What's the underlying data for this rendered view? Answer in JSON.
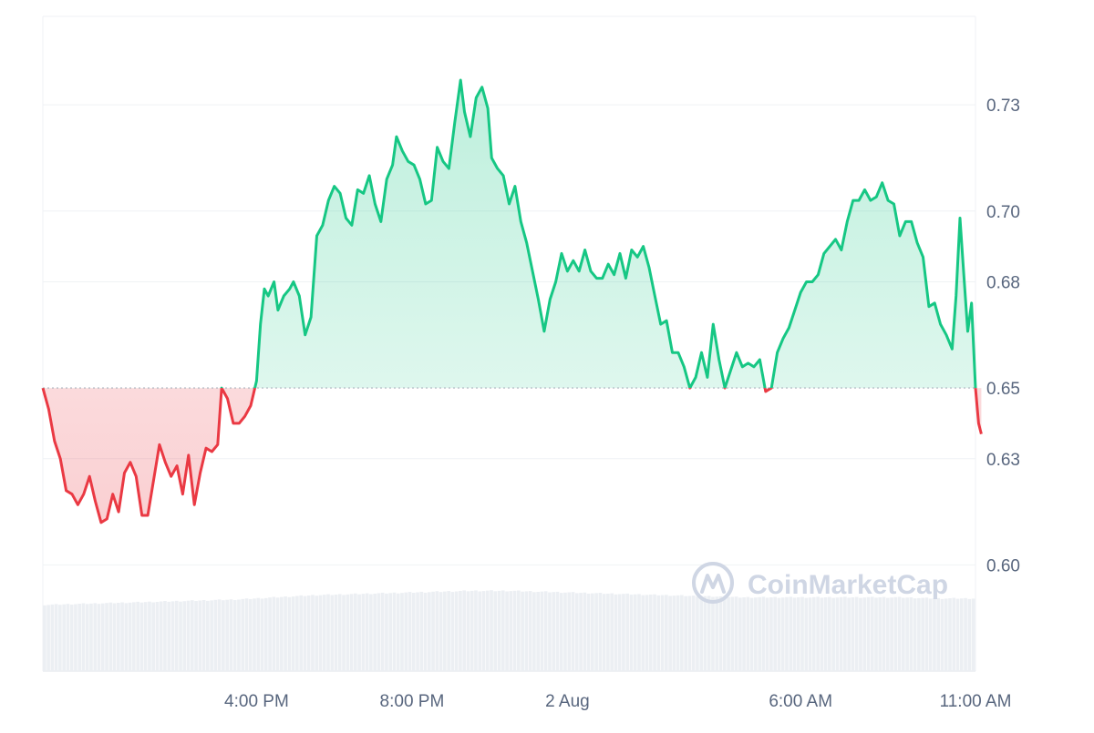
{
  "chart_data": {
    "type": "area",
    "title": "",
    "xlabel": "",
    "ylabel": "",
    "baseline": 0.65,
    "ylim": [
      0.57,
      0.755
    ],
    "yticks": [
      0.6,
      0.63,
      0.65,
      0.68,
      0.7,
      0.73
    ],
    "ytick_labels": [
      "0.60",
      "0.63",
      "0.65",
      "0.68",
      "0.70",
      "0.73"
    ],
    "x_range_hours": [
      0,
      24
    ],
    "xticks": [
      {
        "label": "4:00 PM",
        "hour": 5.5
      },
      {
        "label": "8:00 PM",
        "hour": 9.5
      },
      {
        "label": "2 Aug",
        "hour": 13.5
      },
      {
        "label": "6:00 AM",
        "hour": 19.5
      },
      {
        "label": "11:00 AM",
        "hour": 24
      }
    ],
    "grid": true,
    "watermark": "CoinMarketCap",
    "colors": {
      "up": "#16c784",
      "down": "#ea3943",
      "up_fill": "#16c784",
      "down_fill": "#ea3943",
      "grid": "#eff2f5",
      "tick_text": "#58667e",
      "volume": "#eceff3",
      "watermark": "#cfd6e4"
    },
    "price_series": [
      [
        0.0,
        0.65
      ],
      [
        0.15,
        0.644
      ],
      [
        0.3,
        0.635
      ],
      [
        0.45,
        0.63
      ],
      [
        0.6,
        0.621
      ],
      [
        0.75,
        0.62
      ],
      [
        0.9,
        0.617
      ],
      [
        1.05,
        0.62
      ],
      [
        1.2,
        0.625
      ],
      [
        1.35,
        0.618
      ],
      [
        1.5,
        0.612
      ],
      [
        1.65,
        0.613
      ],
      [
        1.8,
        0.62
      ],
      [
        1.95,
        0.615
      ],
      [
        2.1,
        0.626
      ],
      [
        2.25,
        0.629
      ],
      [
        2.4,
        0.625
      ],
      [
        2.55,
        0.614
      ],
      [
        2.7,
        0.614
      ],
      [
        2.85,
        0.624
      ],
      [
        3.0,
        0.634
      ],
      [
        3.15,
        0.629
      ],
      [
        3.3,
        0.625
      ],
      [
        3.45,
        0.628
      ],
      [
        3.6,
        0.62
      ],
      [
        3.75,
        0.631
      ],
      [
        3.9,
        0.617
      ],
      [
        4.05,
        0.626
      ],
      [
        4.2,
        0.633
      ],
      [
        4.35,
        0.632
      ],
      [
        4.5,
        0.634
      ],
      [
        4.6,
        0.65
      ],
      [
        4.75,
        0.647
      ],
      [
        4.9,
        0.64
      ],
      [
        5.05,
        0.64
      ],
      [
        5.2,
        0.642
      ],
      [
        5.35,
        0.645
      ],
      [
        5.5,
        0.652
      ],
      [
        5.6,
        0.668
      ],
      [
        5.7,
        0.678
      ],
      [
        5.8,
        0.676
      ],
      [
        5.95,
        0.68
      ],
      [
        6.05,
        0.672
      ],
      [
        6.2,
        0.676
      ],
      [
        6.35,
        0.678
      ],
      [
        6.45,
        0.68
      ],
      [
        6.6,
        0.676
      ],
      [
        6.75,
        0.665
      ],
      [
        6.9,
        0.67
      ],
      [
        7.05,
        0.693
      ],
      [
        7.2,
        0.696
      ],
      [
        7.35,
        0.703
      ],
      [
        7.5,
        0.707
      ],
      [
        7.65,
        0.705
      ],
      [
        7.8,
        0.698
      ],
      [
        7.95,
        0.696
      ],
      [
        8.1,
        0.706
      ],
      [
        8.25,
        0.705
      ],
      [
        8.4,
        0.71
      ],
      [
        8.55,
        0.702
      ],
      [
        8.7,
        0.697
      ],
      [
        8.85,
        0.709
      ],
      [
        9.0,
        0.713
      ],
      [
        9.1,
        0.721
      ],
      [
        9.25,
        0.717
      ],
      [
        9.4,
        0.714
      ],
      [
        9.55,
        0.713
      ],
      [
        9.7,
        0.709
      ],
      [
        9.85,
        0.702
      ],
      [
        10.0,
        0.703
      ],
      [
        10.15,
        0.718
      ],
      [
        10.3,
        0.714
      ],
      [
        10.45,
        0.712
      ],
      [
        10.6,
        0.725
      ],
      [
        10.75,
        0.737
      ],
      [
        10.85,
        0.728
      ],
      [
        11.0,
        0.721
      ],
      [
        11.15,
        0.732
      ],
      [
        11.3,
        0.735
      ],
      [
        11.45,
        0.729
      ],
      [
        11.55,
        0.715
      ],
      [
        11.7,
        0.712
      ],
      [
        11.85,
        0.71
      ],
      [
        12.0,
        0.702
      ],
      [
        12.15,
        0.707
      ],
      [
        12.3,
        0.697
      ],
      [
        12.45,
        0.691
      ],
      [
        12.6,
        0.683
      ],
      [
        12.75,
        0.675
      ],
      [
        12.9,
        0.666
      ],
      [
        13.05,
        0.675
      ],
      [
        13.2,
        0.68
      ],
      [
        13.35,
        0.688
      ],
      [
        13.5,
        0.683
      ],
      [
        13.65,
        0.686
      ],
      [
        13.8,
        0.683
      ],
      [
        13.95,
        0.689
      ],
      [
        14.1,
        0.683
      ],
      [
        14.25,
        0.681
      ],
      [
        14.4,
        0.681
      ],
      [
        14.55,
        0.685
      ],
      [
        14.7,
        0.682
      ],
      [
        14.85,
        0.688
      ],
      [
        15.0,
        0.681
      ],
      [
        15.15,
        0.689
      ],
      [
        15.3,
        0.687
      ],
      [
        15.45,
        0.69
      ],
      [
        15.6,
        0.684
      ],
      [
        15.75,
        0.676
      ],
      [
        15.9,
        0.668
      ],
      [
        16.05,
        0.669
      ],
      [
        16.2,
        0.66
      ],
      [
        16.35,
        0.66
      ],
      [
        16.5,
        0.656
      ],
      [
        16.65,
        0.65
      ],
      [
        16.8,
        0.653
      ],
      [
        16.95,
        0.66
      ],
      [
        17.1,
        0.653
      ],
      [
        17.25,
        0.668
      ],
      [
        17.4,
        0.658
      ],
      [
        17.55,
        0.65
      ],
      [
        17.7,
        0.655
      ],
      [
        17.85,
        0.66
      ],
      [
        18.0,
        0.656
      ],
      [
        18.15,
        0.657
      ],
      [
        18.3,
        0.656
      ],
      [
        18.45,
        0.658
      ],
      [
        18.6,
        0.649
      ],
      [
        18.75,
        0.65
      ],
      [
        18.9,
        0.66
      ],
      [
        19.05,
        0.664
      ],
      [
        19.2,
        0.667
      ],
      [
        19.35,
        0.672
      ],
      [
        19.5,
        0.677
      ],
      [
        19.65,
        0.68
      ],
      [
        19.8,
        0.68
      ],
      [
        19.95,
        0.682
      ],
      [
        20.1,
        0.688
      ],
      [
        20.25,
        0.69
      ],
      [
        20.4,
        0.692
      ],
      [
        20.55,
        0.689
      ],
      [
        20.7,
        0.697
      ],
      [
        20.85,
        0.703
      ],
      [
        21.0,
        0.703
      ],
      [
        21.15,
        0.706
      ],
      [
        21.3,
        0.703
      ],
      [
        21.45,
        0.704
      ],
      [
        21.6,
        0.708
      ],
      [
        21.75,
        0.703
      ],
      [
        21.9,
        0.702
      ],
      [
        22.05,
        0.693
      ],
      [
        22.2,
        0.697
      ],
      [
        22.35,
        0.697
      ],
      [
        22.5,
        0.691
      ],
      [
        22.65,
        0.687
      ],
      [
        22.8,
        0.673
      ],
      [
        22.95,
        0.674
      ],
      [
        23.1,
        0.668
      ],
      [
        23.25,
        0.665
      ],
      [
        23.4,
        0.661
      ],
      [
        23.5,
        0.676
      ],
      [
        23.6,
        0.698
      ],
      [
        23.7,
        0.682
      ],
      [
        23.8,
        0.666
      ],
      [
        23.9,
        0.674
      ],
      [
        24.0,
        0.65
      ],
      [
        24.08,
        0.64
      ],
      [
        24.15,
        0.637
      ]
    ],
    "volume_levels": [
      [
        0,
        0.61
      ],
      [
        1,
        0.62
      ],
      [
        2,
        0.63
      ],
      [
        3,
        0.64
      ],
      [
        4,
        0.65
      ],
      [
        5,
        0.66
      ],
      [
        6,
        0.68
      ],
      [
        7,
        0.7
      ],
      [
        8,
        0.71
      ],
      [
        9,
        0.72
      ],
      [
        10,
        0.73
      ],
      [
        11,
        0.74
      ],
      [
        12,
        0.74
      ],
      [
        13,
        0.73
      ],
      [
        14,
        0.72
      ],
      [
        15,
        0.71
      ],
      [
        16,
        0.7
      ],
      [
        17,
        0.69
      ],
      [
        18,
        0.68
      ],
      [
        19,
        0.68
      ],
      [
        20,
        0.68
      ],
      [
        21,
        0.68
      ],
      [
        22,
        0.68
      ],
      [
        23,
        0.67
      ],
      [
        24,
        0.67
      ]
    ]
  }
}
